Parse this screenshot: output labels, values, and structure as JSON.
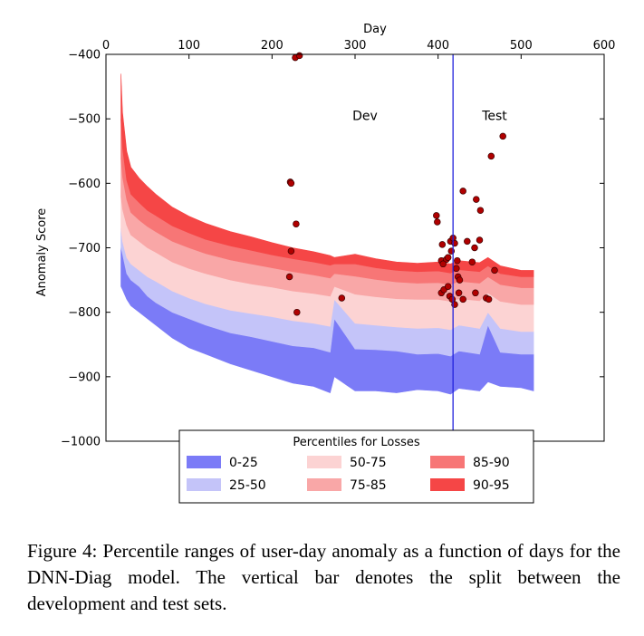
{
  "figure": {
    "caption": "Figure 4: Percentile ranges of user-day anomaly as a function of days for the DNN-Diag model. The vertical bar denotes the split between the development and test sets."
  },
  "chart_data": {
    "type": "area",
    "title": "",
    "xlabel": "Day",
    "ylabel": "Anomaly Score",
    "xlim": [
      0,
      600
    ],
    "ylim": [
      -1000,
      -400
    ],
    "x_ticks": [
      0,
      100,
      200,
      300,
      400,
      500,
      600
    ],
    "x_tick_labels": [
      "0",
      "100",
      "200",
      "300",
      "400",
      "500",
      "600"
    ],
    "y_ticks": [
      -400,
      -500,
      -600,
      -700,
      -800,
      -900,
      -1000
    ],
    "y_tick_labels": [
      "−400",
      "−500",
      "−600",
      "−700",
      "−800",
      "−900",
      "−1000"
    ],
    "x_axis_position": "top",
    "grid": false,
    "split_day": 418,
    "annotations": [
      {
        "text": "Dev",
        "x": 312,
        "y": -495
      },
      {
        "text": "Test",
        "x": 468,
        "y": -495
      }
    ],
    "legend": {
      "title": "Percentiles for Losses",
      "placement": "bottom-center",
      "entries": [
        {
          "label": "0-25",
          "color": "#7b7bf7"
        },
        {
          "label": "25-50",
          "color": "#c4c4f9"
        },
        {
          "label": "50-75",
          "color": "#fcd3d3"
        },
        {
          "label": "75-85",
          "color": "#f9a7a7"
        },
        {
          "label": "85-90",
          "color": "#f77676"
        },
        {
          "label": "90-95",
          "color": "#f54646"
        }
      ]
    },
    "x": [
      18,
      20,
      25,
      30,
      40,
      50,
      60,
      80,
      100,
      120,
      150,
      175,
      200,
      225,
      250,
      270,
      275,
      300,
      325,
      350,
      375,
      400,
      415,
      425,
      450,
      460,
      475,
      500,
      515
    ],
    "series": [
      {
        "name": "0-25",
        "color": "#7b7bf7",
        "lower": [
          -760,
          -765,
          -780,
          -790,
          -800,
          -810,
          -820,
          -840,
          -855,
          -865,
          -880,
          -890,
          -900,
          -910,
          -915,
          -925,
          -900,
          -922,
          -922,
          -925,
          -920,
          -922,
          -927,
          -918,
          -922,
          -908,
          -915,
          -917,
          -922
        ],
        "upper": [
          -700,
          -710,
          -740,
          -750,
          -760,
          -775,
          -785,
          -800,
          -810,
          -820,
          -832,
          -838,
          -845,
          -852,
          -855,
          -862,
          -810,
          -857,
          -858,
          -860,
          -865,
          -864,
          -868,
          -860,
          -865,
          -820,
          -862,
          -865,
          -865
        ]
      },
      {
        "name": "25-50",
        "color": "#c4c4f9",
        "lower": [
          -700,
          -710,
          -740,
          -750,
          -760,
          -775,
          -785,
          -800,
          -810,
          -820,
          -832,
          -838,
          -845,
          -852,
          -855,
          -862,
          -810,
          -857,
          -858,
          -860,
          -865,
          -864,
          -868,
          -860,
          -865,
          -820,
          -862,
          -865,
          -865
        ],
        "upper": [
          -670,
          -690,
          -715,
          -725,
          -735,
          -745,
          -752,
          -767,
          -778,
          -787,
          -797,
          -802,
          -807,
          -813,
          -817,
          -822,
          -780,
          -817,
          -820,
          -823,
          -825,
          -824,
          -827,
          -820,
          -825,
          -800,
          -825,
          -830,
          -830
        ]
      },
      {
        "name": "50-75",
        "color": "#fcd3d3",
        "lower": [
          -670,
          -690,
          -715,
          -725,
          -735,
          -745,
          -752,
          -767,
          -778,
          -787,
          -797,
          -802,
          -807,
          -813,
          -817,
          -822,
          -780,
          -817,
          -820,
          -823,
          -825,
          -824,
          -827,
          -820,
          -825,
          -800,
          -825,
          -830,
          -830
        ],
        "upper": [
          -620,
          -640,
          -665,
          -680,
          -690,
          -700,
          -707,
          -722,
          -732,
          -740,
          -750,
          -756,
          -761,
          -767,
          -771,
          -775,
          -760,
          -772,
          -776,
          -779,
          -780,
          -780,
          -783,
          -779,
          -782,
          -770,
          -783,
          -788,
          -788
        ]
      },
      {
        "name": "75-85",
        "color": "#f9a7a7",
        "lower": [
          -620,
          -640,
          -665,
          -680,
          -690,
          -700,
          -707,
          -722,
          -732,
          -740,
          -750,
          -756,
          -761,
          -767,
          -771,
          -775,
          -760,
          -772,
          -776,
          -779,
          -780,
          -780,
          -783,
          -779,
          -782,
          -770,
          -783,
          -788,
          -788
        ],
        "upper": [
          -560,
          -590,
          -625,
          -645,
          -657,
          -667,
          -675,
          -690,
          -700,
          -709,
          -719,
          -725,
          -731,
          -737,
          -742,
          -747,
          -740,
          -744,
          -749,
          -753,
          -755,
          -754,
          -757,
          -752,
          -755,
          -745,
          -757,
          -762,
          -762
        ]
      },
      {
        "name": "85-90",
        "color": "#f77676",
        "lower": [
          -560,
          -590,
          -625,
          -645,
          -657,
          -667,
          -675,
          -690,
          -700,
          -709,
          -719,
          -725,
          -731,
          -737,
          -742,
          -747,
          -740,
          -744,
          -749,
          -753,
          -755,
          -754,
          -757,
          -752,
          -755,
          -745,
          -757,
          -762,
          -762
        ],
        "upper": [
          -500,
          -545,
          -595,
          -617,
          -630,
          -642,
          -650,
          -666,
          -677,
          -687,
          -697,
          -704,
          -711,
          -717,
          -722,
          -727,
          -725,
          -725,
          -731,
          -735,
          -737,
          -736,
          -739,
          -734,
          -737,
          -728,
          -740,
          -745,
          -745
        ]
      },
      {
        "name": "90-95",
        "color": "#f54646",
        "lower": [
          -500,
          -545,
          -595,
          -617,
          -630,
          -642,
          -650,
          -666,
          -677,
          -687,
          -697,
          -704,
          -711,
          -717,
          -722,
          -727,
          -725,
          -725,
          -731,
          -735,
          -737,
          -736,
          -739,
          -734,
          -737,
          -728,
          -740,
          -745,
          -745
        ],
        "upper": [
          -430,
          -490,
          -550,
          -575,
          -592,
          -605,
          -617,
          -637,
          -651,
          -662,
          -675,
          -683,
          -692,
          -700,
          -706,
          -712,
          -715,
          -710,
          -717,
          -722,
          -724,
          -722,
          -725,
          -720,
          -723,
          -715,
          -728,
          -735,
          -735
        ]
      }
    ],
    "outliers": {
      "color": "#b00000",
      "points": [
        [
          222,
          -598
        ],
        [
          223,
          -600
        ],
        [
          228,
          -405
        ],
        [
          233,
          -402
        ],
        [
          229,
          -663
        ],
        [
          223,
          -705
        ],
        [
          221,
          -745
        ],
        [
          230,
          -800
        ],
        [
          284,
          -778
        ],
        [
          398,
          -650
        ],
        [
          399,
          -660
        ],
        [
          405,
          -695
        ],
        [
          404,
          -720
        ],
        [
          410,
          -718
        ],
        [
          412,
          -715
        ],
        [
          406,
          -725
        ],
        [
          415,
          -690
        ],
        [
          418,
          -685
        ],
        [
          420,
          -693
        ],
        [
          416,
          -705
        ],
        [
          423,
          -720
        ],
        [
          422,
          -732
        ],
        [
          424,
          -745
        ],
        [
          426,
          -750
        ],
        [
          404,
          -770
        ],
        [
          407,
          -765
        ],
        [
          412,
          -760
        ],
        [
          414,
          -775
        ],
        [
          417,
          -780
        ],
        [
          420,
          -788
        ],
        [
          425,
          -770
        ],
        [
          430,
          -612
        ],
        [
          446,
          -625
        ],
        [
          451,
          -642
        ],
        [
          435,
          -690
        ],
        [
          441,
          -722
        ],
        [
          444,
          -700
        ],
        [
          450,
          -688
        ],
        [
          468,
          -735
        ],
        [
          430,
          -780
        ],
        [
          445,
          -770
        ],
        [
          458,
          -778
        ],
        [
          461,
          -780
        ],
        [
          464,
          -558
        ],
        [
          478,
          -527
        ]
      ]
    }
  }
}
